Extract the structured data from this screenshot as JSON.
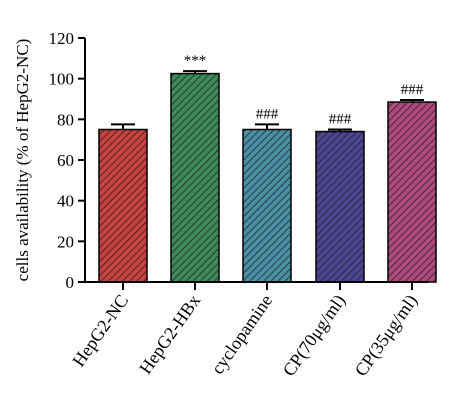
{
  "chart_data": {
    "type": "bar",
    "title": "",
    "xlabel": "",
    "ylabel": "cells availability (% of HepG2-NC)",
    "ylim": [
      0,
      120
    ],
    "yticks": [
      0,
      20,
      40,
      60,
      80,
      100,
      120
    ],
    "categories": [
      "HepG2-NC",
      "HepG2-HBx",
      "cyclopamine",
      "CP(70μg/ml)",
      "CP(35μg/ml)"
    ],
    "values": [
      75,
      102.5,
      75,
      74,
      88.5
    ],
    "errors": [
      2.5,
      1.2,
      2.5,
      1.0,
      1.0
    ],
    "annotations": [
      "",
      "***",
      "###",
      "###",
      "###"
    ],
    "colors": [
      "#c8423f",
      "#3f8a5a",
      "#4a8fa5",
      "#4e4590",
      "#b04a7c"
    ],
    "hatch": "diagonal",
    "grid": false,
    "legend": "none"
  }
}
